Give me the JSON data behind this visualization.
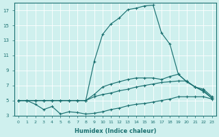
{
  "xlabel": "Humidex (Indice chaleur)",
  "bg_color": "#cff0ee",
  "line_color": "#1a7070",
  "xlim_min": -0.5,
  "xlim_max": 23.5,
  "ylim_min": 3,
  "ylim_max": 18,
  "yticks": [
    3,
    5,
    7,
    9,
    11,
    13,
    15,
    17
  ],
  "xticks": [
    0,
    1,
    2,
    3,
    4,
    5,
    6,
    7,
    8,
    9,
    10,
    11,
    12,
    13,
    14,
    15,
    16,
    17,
    18,
    19,
    20,
    21,
    22,
    23
  ],
  "curves": [
    {
      "x": [
        0,
        1,
        2,
        3,
        4,
        5,
        6,
        7,
        8,
        9,
        10,
        11,
        12,
        13,
        14,
        15,
        16,
        17,
        18,
        19,
        20,
        21,
        22,
        23
      ],
      "y": [
        5,
        5,
        5,
        5,
        5,
        5,
        5,
        5,
        5,
        10.2,
        13.8,
        15.2,
        16.0,
        17.1,
        17.3,
        17.6,
        17.7,
        14.0,
        12.5,
        8.5,
        7.5,
        6.8,
        6.2,
        5.3
      ]
    },
    {
      "x": [
        0,
        1,
        2,
        3,
        4,
        5,
        6,
        7,
        8,
        9,
        10,
        11,
        12,
        13,
        14,
        15,
        16,
        17,
        18,
        19,
        20,
        21,
        22,
        23
      ],
      "y": [
        5,
        5,
        5,
        5,
        5,
        5,
        5,
        5,
        5,
        5.8,
        6.8,
        7.2,
        7.5,
        7.8,
        8.0,
        8.0,
        8.0,
        7.8,
        8.2,
        8.5,
        7.5,
        6.8,
        6.5,
        5.5
      ]
    },
    {
      "x": [
        0,
        1,
        2,
        3,
        4,
        5,
        6,
        7,
        8,
        9,
        10,
        11,
        12,
        13,
        14,
        15,
        16,
        17,
        18,
        19,
        20,
        21,
        22,
        23
      ],
      "y": [
        5,
        5,
        5,
        5,
        5,
        5,
        5,
        5,
        5,
        5.5,
        5.8,
        6.0,
        6.3,
        6.5,
        6.8,
        7.0,
        7.2,
        7.4,
        7.5,
        7.6,
        7.6,
        6.8,
        6.3,
        5.3
      ]
    },
    {
      "x": [
        0,
        1,
        2,
        3,
        4,
        5,
        6,
        7,
        8,
        9,
        10,
        11,
        12,
        13,
        14,
        15,
        16,
        17,
        18,
        19,
        20,
        21,
        22,
        23
      ],
      "y": [
        5,
        5,
        4.5,
        3.8,
        4.2,
        3.2,
        3.5,
        3.4,
        3.2,
        3.3,
        3.5,
        3.8,
        4.0,
        4.3,
        4.5,
        4.6,
        4.8,
        5.0,
        5.2,
        5.5,
        5.5,
        5.5,
        5.5,
        5.2
      ]
    }
  ]
}
